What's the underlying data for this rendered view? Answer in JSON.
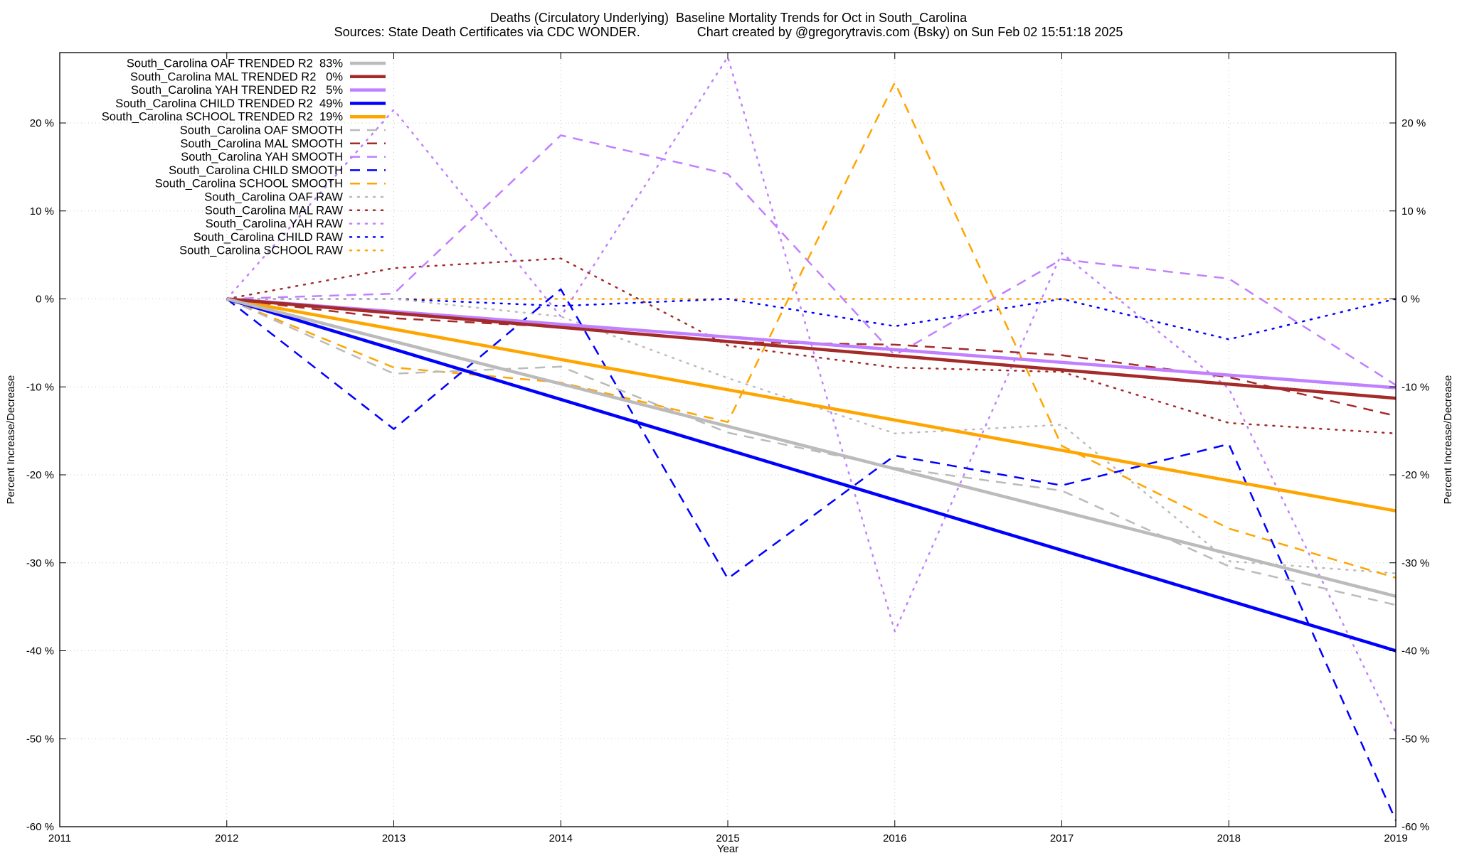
{
  "title": "Deaths (Circulatory Underlying)  Baseline Mortality Trends for Oct in South_Carolina",
  "subtitle": "Sources: State Death Certificates via CDC WONDER.                Chart created by @gregorytravis.com (Bsky) on Sun Feb 02 15:51:18 2025",
  "chart_data": {
    "type": "line",
    "title": "Deaths (Circulatory Underlying)  Baseline Mortality Trends for Oct in South_Carolina",
    "xlabel": "Year",
    "ylabel": "Percent Increase/Decrease",
    "y2label": "Percent Increase/Decrease",
    "xlim": [
      2011,
      2019
    ],
    "ylim": [
      -60,
      28
    ],
    "x_ticks": [
      "2011",
      "2012",
      "2013",
      "2014",
      "2015",
      "2016",
      "2017",
      "2018",
      "2019"
    ],
    "y_ticks": [
      {
        "value": 20,
        "label": "20 %"
      },
      {
        "value": 10,
        "label": "10 %"
      },
      {
        "value": 0,
        "label": "0 %"
      },
      {
        "value": -10,
        "label": "-10 %"
      },
      {
        "value": -20,
        "label": "-20 %"
      },
      {
        "value": -30,
        "label": "-30 %"
      },
      {
        "value": -40,
        "label": "-40 %"
      },
      {
        "value": -50,
        "label": "-50 %"
      },
      {
        "value": -60,
        "label": "-60 %"
      }
    ],
    "grid": true,
    "legend_position": "top-left",
    "series": [
      {
        "name": "South_Carolina OAF TRENDED R2  83%",
        "color": "#bbbbbb",
        "style": "solid",
        "x": [
          2012,
          2019
        ],
        "y": [
          0,
          -33.8
        ]
      },
      {
        "name": "South_Carolina MAL TRENDED R2   0%",
        "color": "#a52a2a",
        "style": "solid",
        "x": [
          2012,
          2019
        ],
        "y": [
          0,
          -11.3
        ]
      },
      {
        "name": "South_Carolina YAH TRENDED R2   5%",
        "color": "#c080ff",
        "style": "solid",
        "x": [
          2012,
          2019
        ],
        "y": [
          0,
          -10.1
        ]
      },
      {
        "name": "South_Carolina CHILD TRENDED R2  49%",
        "color": "#0000ff",
        "style": "solid",
        "x": [
          2012,
          2019
        ],
        "y": [
          0,
          -40
        ]
      },
      {
        "name": "South_Carolina SCHOOL TRENDED R2  19%",
        "color": "#ffa500",
        "style": "solid",
        "x": [
          2012,
          2019
        ],
        "y": [
          0,
          -24.1
        ]
      },
      {
        "name": "South_Carolina OAF SMOOTH",
        "color": "#bbbbbb",
        "style": "dashed",
        "x": [
          2012,
          2013,
          2014,
          2015,
          2016,
          2017,
          2018,
          2019
        ],
        "y": [
          0,
          -8.5,
          -7.7,
          -15.2,
          -19.2,
          -21.8,
          -30.4,
          -34.8
        ]
      },
      {
        "name": "South_Carolina MAL SMOOTH",
        "color": "#a52a2a",
        "style": "dashed",
        "x": [
          2012,
          2013,
          2014,
          2015,
          2016,
          2017,
          2018,
          2019
        ],
        "y": [
          0,
          -2.2,
          -3.2,
          -4.9,
          -5.2,
          -6.4,
          -8.9,
          -13.3
        ]
      },
      {
        "name": "South_Carolina YAH SMOOTH",
        "color": "#c080ff",
        "style": "dashed",
        "x": [
          2012,
          2013,
          2014,
          2015,
          2016,
          2017,
          2018,
          2019
        ],
        "y": [
          0,
          0.6,
          18.6,
          14.2,
          -6.4,
          4.5,
          2.3,
          -9.8
        ]
      },
      {
        "name": "South_Carolina CHILD SMOOTH",
        "color": "#0000ff",
        "style": "dashed",
        "x": [
          2012,
          2013,
          2014,
          2015,
          2016,
          2017,
          2018,
          2019
        ],
        "y": [
          0,
          -14.8,
          1.1,
          -31.8,
          -17.8,
          -21.2,
          -16.5,
          -59.3
        ]
      },
      {
        "name": "South_Carolina SCHOOL SMOOTH",
        "color": "#ffa500",
        "style": "dashed",
        "x": [
          2012,
          2013,
          2014,
          2015,
          2016,
          2017,
          2018,
          2019
        ],
        "y": [
          0,
          -7.8,
          -9.5,
          -14,
          24.6,
          -16.7,
          -26.1,
          -31.7
        ]
      },
      {
        "name": "South_Carolina OAF RAW",
        "color": "#bbbbbb",
        "style": "dotted",
        "x": [
          2012,
          2013,
          2014,
          2015,
          2016,
          2017,
          2018,
          2019
        ],
        "y": [
          0,
          0,
          -2,
          -9,
          -15.3,
          -14.3,
          -29.8,
          -31.2
        ]
      },
      {
        "name": "South_Carolina MAL RAW",
        "color": "#a52a2a",
        "style": "dotted",
        "x": [
          2012,
          2013,
          2014,
          2015,
          2016,
          2017,
          2018,
          2019
        ],
        "y": [
          0,
          3.5,
          4.6,
          -5.3,
          -7.8,
          -8.3,
          -14.1,
          -15.3
        ]
      },
      {
        "name": "South_Carolina YAH RAW",
        "color": "#c080ff",
        "style": "dotted",
        "x": [
          2012,
          2013,
          2014,
          2015,
          2016,
          2017,
          2018,
          2019
        ],
        "y": [
          0,
          21.5,
          -2,
          27.5,
          -37.8,
          5.2,
          -10.2,
          -49.3
        ]
      },
      {
        "name": "South_Carolina CHILD RAW",
        "color": "#0000ff",
        "style": "dotted",
        "x": [
          2012,
          2013,
          2014,
          2015,
          2016,
          2017,
          2018,
          2019
        ],
        "y": [
          0,
          0,
          -0.8,
          0,
          -3.1,
          0,
          -4.6,
          0
        ]
      },
      {
        "name": "South_Carolina SCHOOL RAW",
        "color": "#ffa500",
        "style": "dotted",
        "x": [
          2012,
          2013,
          2014,
          2015,
          2016,
          2017,
          2018,
          2019
        ],
        "y": [
          0,
          0,
          0,
          0,
          0,
          0,
          0,
          0
        ]
      }
    ]
  }
}
